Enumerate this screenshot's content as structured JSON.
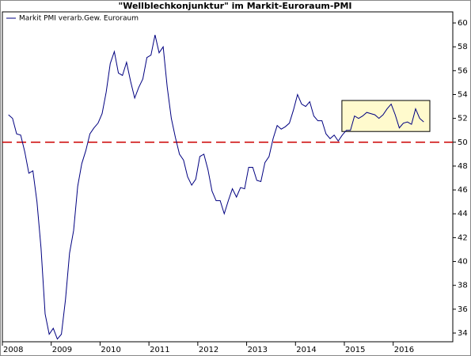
{
  "chart_data": {
    "type": "line",
    "title": "\"Wellblechkonjunktur\" im Markit-Euroraum-PMI",
    "x": [
      2008.125,
      2008.2083,
      2008.2917,
      2008.375,
      2008.4583,
      2008.5417,
      2008.625,
      2008.7083,
      2008.7917,
      2008.875,
      2008.9583,
      2009.0417,
      2009.125,
      2009.2083,
      2009.2917,
      2009.375,
      2009.4583,
      2009.5417,
      2009.625,
      2009.7083,
      2009.7917,
      2009.875,
      2009.9583,
      2010.0417,
      2010.125,
      2010.2083,
      2010.2917,
      2010.375,
      2010.4583,
      2010.5417,
      2010.625,
      2010.7083,
      2010.7917,
      2010.875,
      2010.9583,
      2011.0417,
      2011.125,
      2011.2083,
      2011.2917,
      2011.375,
      2011.4583,
      2011.5417,
      2011.625,
      2011.7083,
      2011.7917,
      2011.875,
      2011.9583,
      2012.0417,
      2012.125,
      2012.2083,
      2012.2917,
      2012.375,
      2012.4583,
      2012.5417,
      2012.625,
      2012.7083,
      2012.7917,
      2012.875,
      2012.9583,
      2013.0417,
      2013.125,
      2013.2083,
      2013.2917,
      2013.375,
      2013.4583,
      2013.5417,
      2013.625,
      2013.7083,
      2013.7917,
      2013.875,
      2013.9583,
      2014.0417,
      2014.125,
      2014.2083,
      2014.2917,
      2014.375,
      2014.4583,
      2014.5417,
      2014.625,
      2014.7083,
      2014.7917,
      2014.875,
      2014.9583,
      2015.0417,
      2015.125,
      2015.2083,
      2015.2917,
      2015.375,
      2015.4583,
      2015.5417,
      2015.625,
      2015.7083,
      2015.7917,
      2015.875,
      2015.9583,
      2016.0417,
      2016.125,
      2016.2083,
      2016.2917,
      2016.375,
      2016.4583,
      2016.5417,
      2016.625
    ],
    "series": [
      {
        "name": "Markit PMI verarb.Gew. Euroraum",
        "color": "#000080",
        "values": [
          52.3,
          52.0,
          50.7,
          50.6,
          49.2,
          47.4,
          47.6,
          45.0,
          41.1,
          35.6,
          33.9,
          34.4,
          33.5,
          33.9,
          36.8,
          40.7,
          42.6,
          46.3,
          48.2,
          49.3,
          50.7,
          51.2,
          51.6,
          52.4,
          54.2,
          56.6,
          57.6,
          55.8,
          55.6,
          56.7,
          55.1,
          53.7,
          54.6,
          55.3,
          57.1,
          57.3,
          59.0,
          57.5,
          58.0,
          54.6,
          52.0,
          50.4,
          49.0,
          48.5,
          47.1,
          46.4,
          46.9,
          48.8,
          49.0,
          47.7,
          45.9,
          45.1,
          45.1,
          44.0,
          45.1,
          46.1,
          45.4,
          46.2,
          46.1,
          47.9,
          47.9,
          46.8,
          46.7,
          48.3,
          48.8,
          50.3,
          51.4,
          51.1,
          51.3,
          51.6,
          52.7,
          54.0,
          53.2,
          53.0,
          53.4,
          52.2,
          51.8,
          51.8,
          50.7,
          50.3,
          50.6,
          50.1,
          50.6,
          51.0,
          51.0,
          52.2,
          52.0,
          52.2,
          52.5,
          52.4,
          52.3,
          52.0,
          52.3,
          52.8,
          53.2,
          52.3,
          51.2,
          51.6,
          51.7,
          51.5,
          52.8,
          52.0,
          51.7
        ]
      }
    ],
    "xlim": [
      2008,
      2017.22
    ],
    "xticks": [
      2008,
      2009,
      2010,
      2011,
      2012,
      2013,
      2014,
      2015,
      2016
    ],
    "ylim": [
      33.27,
      60.93
    ],
    "yticks": [
      34,
      36,
      38,
      40,
      42,
      44,
      46,
      48,
      50,
      52,
      54,
      56,
      58,
      60
    ],
    "reference_line": {
      "value": 50,
      "color": "#cc0000"
    },
    "highlight": {
      "xlim": [
        2014.95,
        2016.75
      ],
      "ylim": [
        50.9,
        53.5
      ],
      "color": "#fffacd"
    },
    "legend": "top-left"
  }
}
